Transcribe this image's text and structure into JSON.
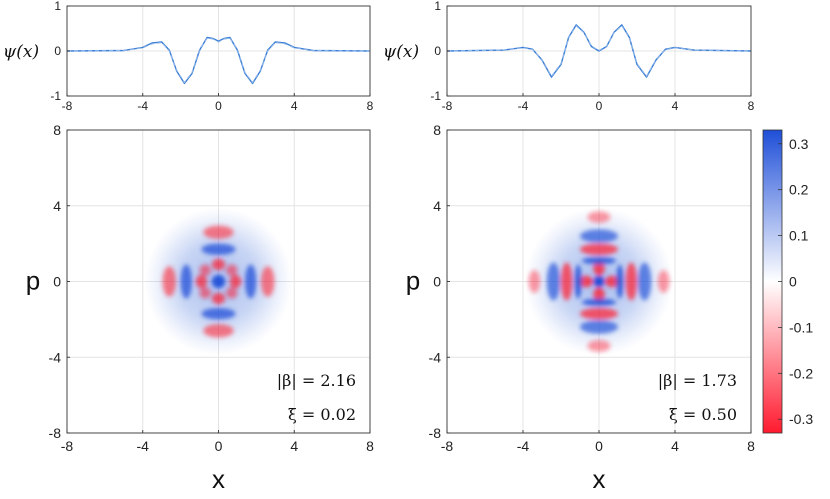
{
  "chart_data": [
    {
      "type": "line",
      "panel": "top-left",
      "ylabel": "ψ(x)",
      "xlim": [
        -8,
        8
      ],
      "ylim": [
        -1,
        1
      ],
      "x_ticks": [
        "-8",
        "-4",
        "0",
        "4",
        "8"
      ],
      "y_ticks": [
        "1",
        "0",
        "-1"
      ],
      "grid": true,
      "series": [
        {
          "style": "solid",
          "color": "#3b7fd6",
          "x": [
            -8,
            -5,
            -4,
            -3.5,
            -3,
            -2.6,
            -2.2,
            -1.8,
            -1.4,
            -1,
            -0.6,
            -0.3,
            0,
            0.3,
            0.6,
            1,
            1.4,
            1.8,
            2.2,
            2.6,
            3,
            3.5,
            4,
            5,
            8
          ],
          "y": [
            0,
            0.01,
            0.08,
            0.18,
            0.2,
            0.02,
            -0.45,
            -0.72,
            -0.5,
            0.02,
            0.3,
            0.28,
            0.22,
            0.28,
            0.3,
            0.02,
            -0.5,
            -0.72,
            -0.45,
            0.02,
            0.2,
            0.18,
            0.08,
            0.01,
            0
          ]
        },
        {
          "style": "dashed",
          "color": "#8fb6e8",
          "x": [
            -8,
            -5,
            -4,
            -3.5,
            -3,
            -2.6,
            -2.2,
            -1.8,
            -1.4,
            -1,
            -0.6,
            -0.3,
            0,
            0.3,
            0.6,
            1,
            1.4,
            1.8,
            2.2,
            2.6,
            3,
            3.5,
            4,
            5,
            8
          ],
          "y": [
            0,
            0.01,
            0.07,
            0.16,
            0.19,
            0.0,
            -0.43,
            -0.7,
            -0.48,
            0.04,
            0.28,
            0.27,
            0.2,
            0.27,
            0.28,
            0.04,
            -0.48,
            -0.7,
            -0.43,
            0.0,
            0.19,
            0.16,
            0.07,
            0.01,
            0
          ]
        }
      ]
    },
    {
      "type": "line",
      "panel": "top-right",
      "ylabel": "ψ(x)",
      "xlim": [
        -8,
        8
      ],
      "ylim": [
        -1,
        1
      ],
      "x_ticks": [
        "-8",
        "-4",
        "0",
        "4",
        "8"
      ],
      "y_ticks": [
        "1",
        "0",
        "-1"
      ],
      "grid": true,
      "series": [
        {
          "style": "solid",
          "color": "#3b7fd6",
          "x": [
            -8,
            -5,
            -4,
            -3.5,
            -3,
            -2.5,
            -2,
            -1.6,
            -1.2,
            -0.8,
            -0.4,
            0,
            0.4,
            0.8,
            1.2,
            1.6,
            2,
            2.5,
            3,
            3.5,
            4,
            5,
            8
          ],
          "y": [
            0,
            0.02,
            0.08,
            0.04,
            -0.2,
            -0.58,
            -0.3,
            0.3,
            0.58,
            0.42,
            0.1,
            0.0,
            0.1,
            0.42,
            0.58,
            0.3,
            -0.3,
            -0.58,
            -0.2,
            0.04,
            0.08,
            0.02,
            0
          ]
        },
        {
          "style": "dashed",
          "color": "#8fb6e8",
          "x": [
            -8,
            -5,
            -4,
            -3.5,
            -3,
            -2.5,
            -2,
            -1.6,
            -1.2,
            -0.8,
            -0.4,
            0,
            0.4,
            0.8,
            1.2,
            1.6,
            2,
            2.5,
            3,
            3.5,
            4,
            5,
            8
          ],
          "y": [
            0,
            0.02,
            0.07,
            0.03,
            -0.19,
            -0.56,
            -0.28,
            0.29,
            0.56,
            0.41,
            0.11,
            0.01,
            0.11,
            0.41,
            0.56,
            0.29,
            -0.28,
            -0.56,
            -0.19,
            0.03,
            0.07,
            0.02,
            0
          ]
        }
      ]
    },
    {
      "type": "heatmap",
      "panel": "bottom-left",
      "xlabel": "x",
      "ylabel": "p",
      "xlim": [
        -8,
        8
      ],
      "ylim": [
        -8,
        8
      ],
      "x_ticks": [
        "-8",
        "-4",
        "0",
        "4",
        "8"
      ],
      "y_ticks": [
        "8",
        "4",
        "0",
        "-4",
        "-8"
      ],
      "grid": true,
      "annotations": [
        "|β| = 2.16",
        "ξ = 0.02"
      ],
      "features": [
        {
          "x": 0,
          "y": 0,
          "rx": 0.35,
          "ry": 0.35,
          "value": 0.3
        },
        {
          "x": -0.7,
          "y": 0.6,
          "rx": 0.3,
          "ry": 0.3,
          "value": -0.12
        },
        {
          "x": 0.7,
          "y": 0.6,
          "rx": 0.3,
          "ry": 0.3,
          "value": -0.12
        },
        {
          "x": -0.7,
          "y": -0.6,
          "rx": 0.3,
          "ry": 0.3,
          "value": -0.12
        },
        {
          "x": 0.7,
          "y": -0.6,
          "rx": 0.3,
          "ry": 0.3,
          "value": -0.12
        },
        {
          "x": 0,
          "y": 0.9,
          "rx": 0.35,
          "ry": 0.3,
          "value": -0.2
        },
        {
          "x": 0,
          "y": -0.9,
          "rx": 0.35,
          "ry": 0.3,
          "value": -0.2
        },
        {
          "x": -0.9,
          "y": 0,
          "rx": 0.3,
          "ry": 0.35,
          "value": -0.2
        },
        {
          "x": 0.9,
          "y": 0,
          "rx": 0.3,
          "ry": 0.35,
          "value": -0.2
        },
        {
          "x": -1.7,
          "y": 0,
          "rx": 0.3,
          "ry": 0.9,
          "value": 0.22
        },
        {
          "x": 1.7,
          "y": 0,
          "rx": 0.3,
          "ry": 0.9,
          "value": 0.22
        },
        {
          "x": 0,
          "y": 1.7,
          "rx": 0.9,
          "ry": 0.3,
          "value": 0.22
        },
        {
          "x": 0,
          "y": -1.7,
          "rx": 0.9,
          "ry": 0.3,
          "value": 0.22
        },
        {
          "x": -2.6,
          "y": 0,
          "rx": 0.35,
          "ry": 0.8,
          "value": -0.14
        },
        {
          "x": 2.6,
          "y": 0,
          "rx": 0.35,
          "ry": 0.8,
          "value": -0.14
        },
        {
          "x": 0,
          "y": 2.6,
          "rx": 0.8,
          "ry": 0.35,
          "value": -0.14
        },
        {
          "x": 0,
          "y": -2.6,
          "rx": 0.8,
          "ry": 0.35,
          "value": -0.14
        }
      ]
    },
    {
      "type": "heatmap",
      "panel": "bottom-right",
      "xlabel": "x",
      "ylabel": "p",
      "xlim": [
        -8,
        8
      ],
      "ylim": [
        -8,
        8
      ],
      "x_ticks": [
        "-8",
        "-4",
        "0",
        "4",
        "8"
      ],
      "y_ticks": [
        "8",
        "4",
        "0",
        "-4",
        "-8"
      ],
      "grid": true,
      "annotations": [
        "|β| = 1.73",
        "ξ = 0.50"
      ],
      "features": [
        {
          "x": 0,
          "y": 0,
          "rx": 0.3,
          "ry": 0.3,
          "value": 0.32
        },
        {
          "x": 0,
          "y": 0.7,
          "rx": 0.3,
          "ry": 0.4,
          "value": -0.22
        },
        {
          "x": 0,
          "y": -0.7,
          "rx": 0.3,
          "ry": 0.4,
          "value": -0.22
        },
        {
          "x": -0.7,
          "y": 0,
          "rx": 0.4,
          "ry": 0.3,
          "value": -0.22
        },
        {
          "x": 0.7,
          "y": 0,
          "rx": 0.4,
          "ry": 0.3,
          "value": -0.22
        },
        {
          "x": -1.1,
          "y": 0,
          "rx": 0.2,
          "ry": 0.9,
          "value": 0.24
        },
        {
          "x": 1.1,
          "y": 0,
          "rx": 0.2,
          "ry": 0.9,
          "value": 0.24
        },
        {
          "x": 0,
          "y": 1.1,
          "rx": 0.9,
          "ry": 0.2,
          "value": 0.24
        },
        {
          "x": 0,
          "y": -1.1,
          "rx": 0.9,
          "ry": 0.2,
          "value": 0.24
        },
        {
          "x": -1.7,
          "y": 0,
          "rx": 0.3,
          "ry": 1.0,
          "value": -0.2
        },
        {
          "x": 1.7,
          "y": 0,
          "rx": 0.3,
          "ry": 1.0,
          "value": -0.2
        },
        {
          "x": 0,
          "y": 1.7,
          "rx": 1.0,
          "ry": 0.3,
          "value": -0.2
        },
        {
          "x": 0,
          "y": -1.7,
          "rx": 1.0,
          "ry": 0.3,
          "value": -0.2
        },
        {
          "x": -2.4,
          "y": 0,
          "rx": 0.35,
          "ry": 1.0,
          "value": 0.18
        },
        {
          "x": 2.4,
          "y": 0,
          "rx": 0.35,
          "ry": 1.0,
          "value": 0.18
        },
        {
          "x": 0,
          "y": 2.4,
          "rx": 1.0,
          "ry": 0.35,
          "value": 0.18
        },
        {
          "x": 0,
          "y": -2.4,
          "rx": 1.0,
          "ry": 0.35,
          "value": 0.18
        },
        {
          "x": -3.4,
          "y": 0,
          "rx": 0.3,
          "ry": 0.6,
          "value": -0.08
        },
        {
          "x": 3.4,
          "y": 0,
          "rx": 0.3,
          "ry": 0.6,
          "value": -0.08
        },
        {
          "x": 0,
          "y": 3.4,
          "rx": 0.6,
          "ry": 0.3,
          "value": -0.08
        },
        {
          "x": 0,
          "y": -3.4,
          "rx": 0.6,
          "ry": 0.3,
          "value": -0.08
        }
      ]
    }
  ],
  "colorbar": {
    "ticks": [
      "0.3",
      "0.2",
      "0.1",
      "0",
      "-0.1",
      "-0.2",
      "-0.3"
    ],
    "range": [
      -0.33,
      0.33
    ],
    "colors": {
      "positive": "#1f4fd8",
      "zero": "#ffffff",
      "negative": "#ff1a2e"
    }
  },
  "background_blob": {
    "color": "#3d6cd9"
  }
}
